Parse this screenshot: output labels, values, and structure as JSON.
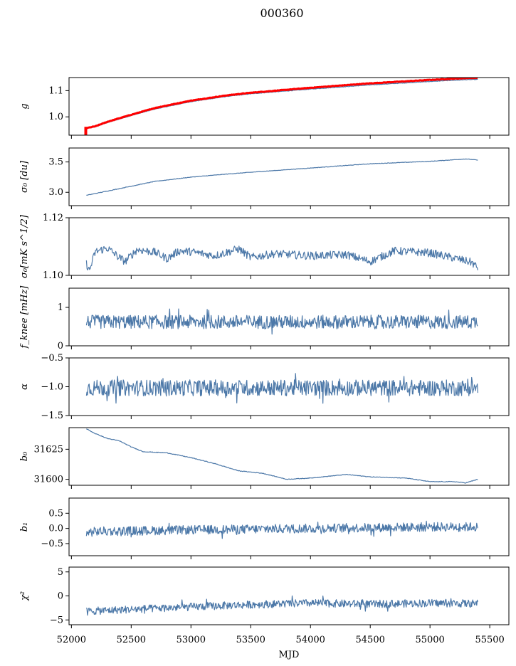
{
  "figure_title": "000360",
  "x_axis": {
    "label": "MJD",
    "range": [
      51980,
      55660
    ],
    "ticks": [
      52000,
      52500,
      53000,
      53500,
      54000,
      54500,
      55000,
      55500
    ]
  },
  "colors": {
    "series": "#4c78a8",
    "highlight": "#ff0000",
    "axes": "#000000"
  },
  "chart_data": [
    {
      "type": "line",
      "id": "g",
      "ylabel": "g",
      "ylim": [
        0.93,
        1.15
      ],
      "yticks": [
        1.0,
        1.1
      ],
      "yticklabels": [
        "1.0",
        "1.1"
      ],
      "series": [
        {
          "color": "#4c78a8",
          "x": [
            52125,
            52200,
            52300,
            52500,
            52700,
            53000,
            53300,
            53500,
            54000,
            54500,
            55000,
            55300,
            55400
          ],
          "y": [
            0.955,
            0.962,
            0.978,
            1.005,
            1.03,
            1.058,
            1.078,
            1.088,
            1.106,
            1.122,
            1.135,
            1.142,
            1.143
          ]
        },
        {
          "color": "#ff0000",
          "x": [
            52125,
            52200,
            52300,
            52500,
            52700,
            53000,
            53300,
            53500,
            54000,
            54500,
            55000,
            55300,
            55400
          ],
          "y": [
            0.957,
            0.964,
            0.981,
            1.008,
            1.034,
            1.062,
            1.082,
            1.092,
            1.111,
            1.128,
            1.141,
            1.148,
            1.149
          ]
        }
      ],
      "markers": [
        {
          "x": 52120,
          "y_from": 0.93,
          "y_to": 0.962
        }
      ]
    },
    {
      "type": "line",
      "id": "sigma0_du",
      "ylabel": "σ₀ [du]",
      "ylim": [
        2.78,
        3.73
      ],
      "yticks": [
        3.0,
        3.5
      ],
      "yticklabels": [
        "3.0",
        "3.5"
      ],
      "series": [
        {
          "color": "#4c78a8",
          "x": [
            52125,
            52300,
            52500,
            52700,
            53000,
            53300,
            53500,
            54000,
            54500,
            55000,
            55300,
            55400
          ],
          "y": [
            2.95,
            3.02,
            3.1,
            3.18,
            3.25,
            3.3,
            3.33,
            3.4,
            3.47,
            3.51,
            3.55,
            3.53
          ]
        }
      ]
    },
    {
      "type": "line",
      "id": "sigma0_mks",
      "ylabel": "σ₀[mK s^1/2]",
      "ylim": [
        1.1,
        1.12
      ],
      "yticks": [
        1.1,
        1.12
      ],
      "yticklabels": [
        "1.10",
        "1.12"
      ],
      "series": [
        {
          "color": "#4c78a8",
          "x": [
            52125,
            52150,
            52200,
            52300,
            52400,
            52450,
            52550,
            52700,
            52800,
            52900,
            53000,
            53200,
            53400,
            53500,
            53700,
            54000,
            54300,
            54500,
            54700,
            55000,
            55200,
            55350,
            55400
          ],
          "y": [
            1.1042,
            1.1015,
            1.1082,
            1.1095,
            1.1062,
            1.1048,
            1.109,
            1.108,
            1.1058,
            1.1085,
            1.1082,
            1.1068,
            1.1092,
            1.1062,
            1.1075,
            1.1068,
            1.1072,
            1.1048,
            1.1085,
            1.1078,
            1.106,
            1.1045,
            1.1025
          ]
        }
      ]
    },
    {
      "type": "line",
      "id": "fknee",
      "ylabel": "f_knee [mHz]",
      "ylim": [
        0,
        1.5
      ],
      "yticks": [
        0,
        1
      ],
      "yticklabels": [
        "0",
        "1"
      ],
      "series": [
        {
          "color": "#4c78a8",
          "noise": {
            "mean": 0.62,
            "amp": 0.18
          },
          "x": [
            52125,
            55400
          ],
          "y": [
            0.62,
            0.62
          ]
        }
      ]
    },
    {
      "type": "line",
      "id": "alpha",
      "ylabel": "α",
      "ylim": [
        -1.5,
        -0.5
      ],
      "yticks": [
        -1.5,
        -1.0,
        -0.5
      ],
      "yticklabels": [
        "−1.5",
        "−1.0",
        "−0.5"
      ],
      "series": [
        {
          "color": "#4c78a8",
          "noise": {
            "mean": -1.02,
            "amp": 0.14
          },
          "x": [
            52125,
            55400
          ],
          "y": [
            -1.02,
            -1.02
          ]
        }
      ]
    },
    {
      "type": "line",
      "id": "b0",
      "ylabel": "b₀",
      "ylim": [
        31595,
        31643
      ],
      "yticks": [
        31600,
        31625
      ],
      "yticklabels": [
        "31600",
        "31625"
      ],
      "series": [
        {
          "color": "#4c78a8",
          "x": [
            52125,
            52200,
            52300,
            52400,
            52500,
            52600,
            52800,
            53000,
            53200,
            53400,
            53500,
            53600,
            53800,
            54000,
            54300,
            54500,
            54800,
            55000,
            55200,
            55300,
            55400
          ],
          "y": [
            31642,
            31638,
            31634,
            31632,
            31627,
            31623,
            31622,
            31618,
            31613,
            31607,
            31606,
            31605,
            31600,
            31601,
            31604,
            31602,
            31601,
            31598,
            31598,
            31597,
            31600
          ]
        }
      ]
    },
    {
      "type": "line",
      "id": "b1",
      "ylabel": "b₁",
      "ylim": [
        -0.9,
        1.0
      ],
      "yticks": [
        -0.5,
        0.0,
        0.5
      ],
      "yticklabels": [
        "−0.5",
        "0.0",
        "0.5"
      ],
      "series": [
        {
          "color": "#4c78a8",
          "noise": {
            "mean": 0.0,
            "amp": 0.15
          },
          "x": [
            52125,
            52200,
            53000,
            54000,
            55000,
            55400
          ],
          "y": [
            -0.15,
            -0.1,
            -0.05,
            0.0,
            0.05,
            0.05
          ]
        }
      ]
    },
    {
      "type": "line",
      "id": "chi2",
      "ylabel": "χ²",
      "ylim": [
        -6,
        6
      ],
      "yticks": [
        -5,
        0,
        5
      ],
      "yticklabels": [
        "−5",
        "0",
        "5"
      ],
      "series": [
        {
          "color": "#4c78a8",
          "noise": {
            "mean": 0.0,
            "amp": 0.8
          },
          "x": [
            52125,
            52500,
            53000,
            53500,
            54000,
            54500,
            55000,
            55400
          ],
          "y": [
            -3.2,
            -2.8,
            -2.3,
            -1.8,
            -1.5,
            -1.7,
            -1.5,
            -1.6
          ]
        }
      ]
    }
  ]
}
